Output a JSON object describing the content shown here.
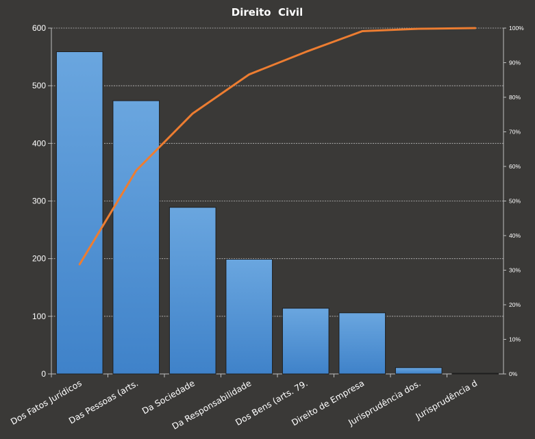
{
  "chart_data": {
    "type": "bar",
    "title": "Direito  Civil",
    "categories": [
      "Dos Fatos Jurídicos",
      "Das Pessoas (arts.",
      "Da Sociedade",
      "Da Responsabilidade",
      "Dos Bens (arts. 79.",
      "Direito de Empresa",
      "Jurisprudência dos.",
      "Jurisprudência d"
    ],
    "series": [
      {
        "values": [
          559,
          474,
          289,
          199,
          114,
          106,
          11,
          1
        ]
      },
      {
        "type": "line",
        "axis": "secondary",
        "values": [
          31.7,
          58.8,
          75.3,
          86.6,
          93.1,
          99.1,
          99.8,
          100
        ]
      }
    ],
    "ylim": [
      0,
      600
    ],
    "yticks": [
      "0",
      "100",
      "200",
      "300",
      "400",
      "500",
      "600"
    ],
    "y2lim": [
      0,
      100
    ],
    "y2ticks": [
      "0%",
      "10%",
      "20%",
      "30%",
      "40%",
      "50%",
      "60%",
      "70%",
      "80%",
      "90%",
      "100%"
    ],
    "grid": true,
    "legend": "none",
    "colors": {
      "background": "#3a3937",
      "bar_top": "#6aa6df",
      "bar_bottom": "#3f82c9",
      "line": "#ed7d31",
      "grid": "#bfbfbf"
    }
  }
}
